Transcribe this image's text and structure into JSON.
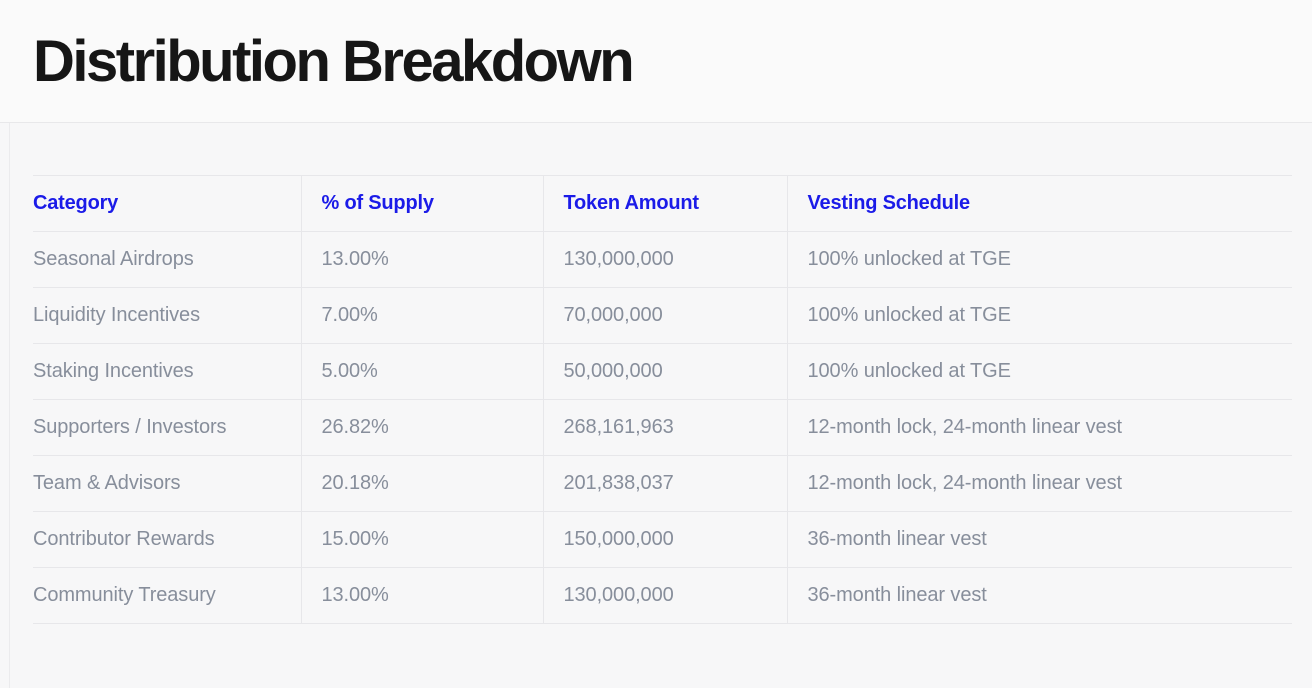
{
  "header": {
    "title": "Distribution Breakdown"
  },
  "colors": {
    "accent_header_text": "#1b1be8",
    "body_text": "#878e9b",
    "title_text": "#161616",
    "page_background": "#f7f7f8",
    "band_background": "#fafafa",
    "divider": "#e7e7ea"
  },
  "table": {
    "columns": [
      "Category",
      "% of Supply",
      "Token Amount",
      "Vesting Schedule"
    ],
    "rows": [
      [
        "Seasonal Airdrops",
        "13.00%",
        "130,000,000",
        "100% unlocked at TGE"
      ],
      [
        "Liquidity Incentives",
        "7.00%",
        "70,000,000",
        "100% unlocked at TGE"
      ],
      [
        "Staking Incentives",
        "5.00%",
        "50,000,000",
        "100% unlocked at TGE"
      ],
      [
        "Supporters / Investors",
        "26.82%",
        "268,161,963",
        "12-month lock, 24-month linear vest"
      ],
      [
        "Team & Advisors",
        "20.18%",
        "201,838,037",
        "12-month lock, 24-month linear vest"
      ],
      [
        "Contributor Rewards",
        "15.00%",
        "150,000,000",
        "36-month linear vest"
      ],
      [
        "Community Treasury",
        "13.00%",
        "130,000,000",
        "36-month linear vest"
      ]
    ]
  }
}
